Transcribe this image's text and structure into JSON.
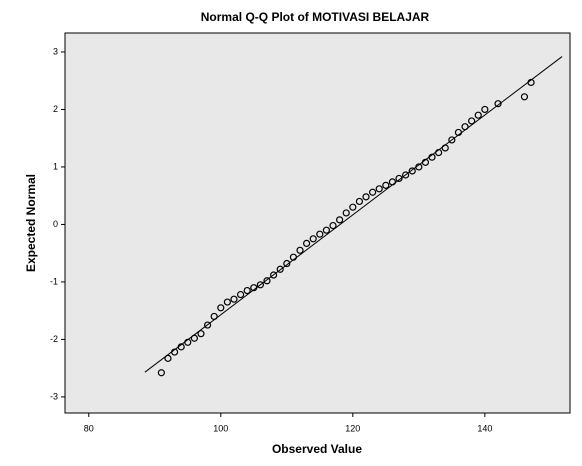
{
  "chart_data": {
    "type": "scatter",
    "title": "Normal Q-Q Plot of MOTIVASI BELAJAR",
    "x_label": "Observed Value",
    "y_label": "Expected Normal",
    "xlim": [
      76.4,
      152.9
    ],
    "ylim": [
      -3.28,
      3.33
    ],
    "xticks": [
      80,
      100,
      120,
      140
    ],
    "yticks": [
      -3,
      -2,
      -1,
      0,
      1,
      2,
      3
    ],
    "color": "#000000",
    "background": "#e8e8e8",
    "x": [
      91,
      92,
      93,
      94,
      95,
      96,
      97,
      98,
      99,
      100,
      101,
      102,
      103,
      104,
      105,
      106,
      107,
      108,
      109,
      110,
      111,
      112,
      113,
      114,
      115,
      116,
      117,
      118,
      119,
      120,
      121,
      122,
      123,
      124,
      125,
      126,
      127,
      128,
      129,
      130,
      131,
      132,
      133,
      134,
      135,
      136,
      137,
      138,
      139,
      140,
      142,
      146,
      147
    ],
    "values": [
      -2.58,
      -2.33,
      -2.22,
      -2.13,
      -2.05,
      -1.98,
      -1.9,
      -1.75,
      -1.6,
      -1.45,
      -1.35,
      -1.3,
      -1.22,
      -1.15,
      -1.1,
      -1.05,
      -0.98,
      -0.88,
      -0.78,
      -0.68,
      -0.57,
      -0.45,
      -0.33,
      -0.25,
      -0.17,
      -0.1,
      -0.02,
      0.08,
      0.2,
      0.3,
      0.4,
      0.48,
      0.56,
      0.62,
      0.68,
      0.74,
      0.8,
      0.86,
      0.93,
      1.0,
      1.08,
      1.17,
      1.25,
      1.33,
      1.47,
      1.6,
      1.7,
      1.8,
      1.9,
      2.0,
      2.1,
      2.22,
      2.47
    ],
    "reference_line": {
      "x": [
        88.5,
        151.7
      ],
      "y": [
        -2.57,
        2.92
      ]
    }
  }
}
